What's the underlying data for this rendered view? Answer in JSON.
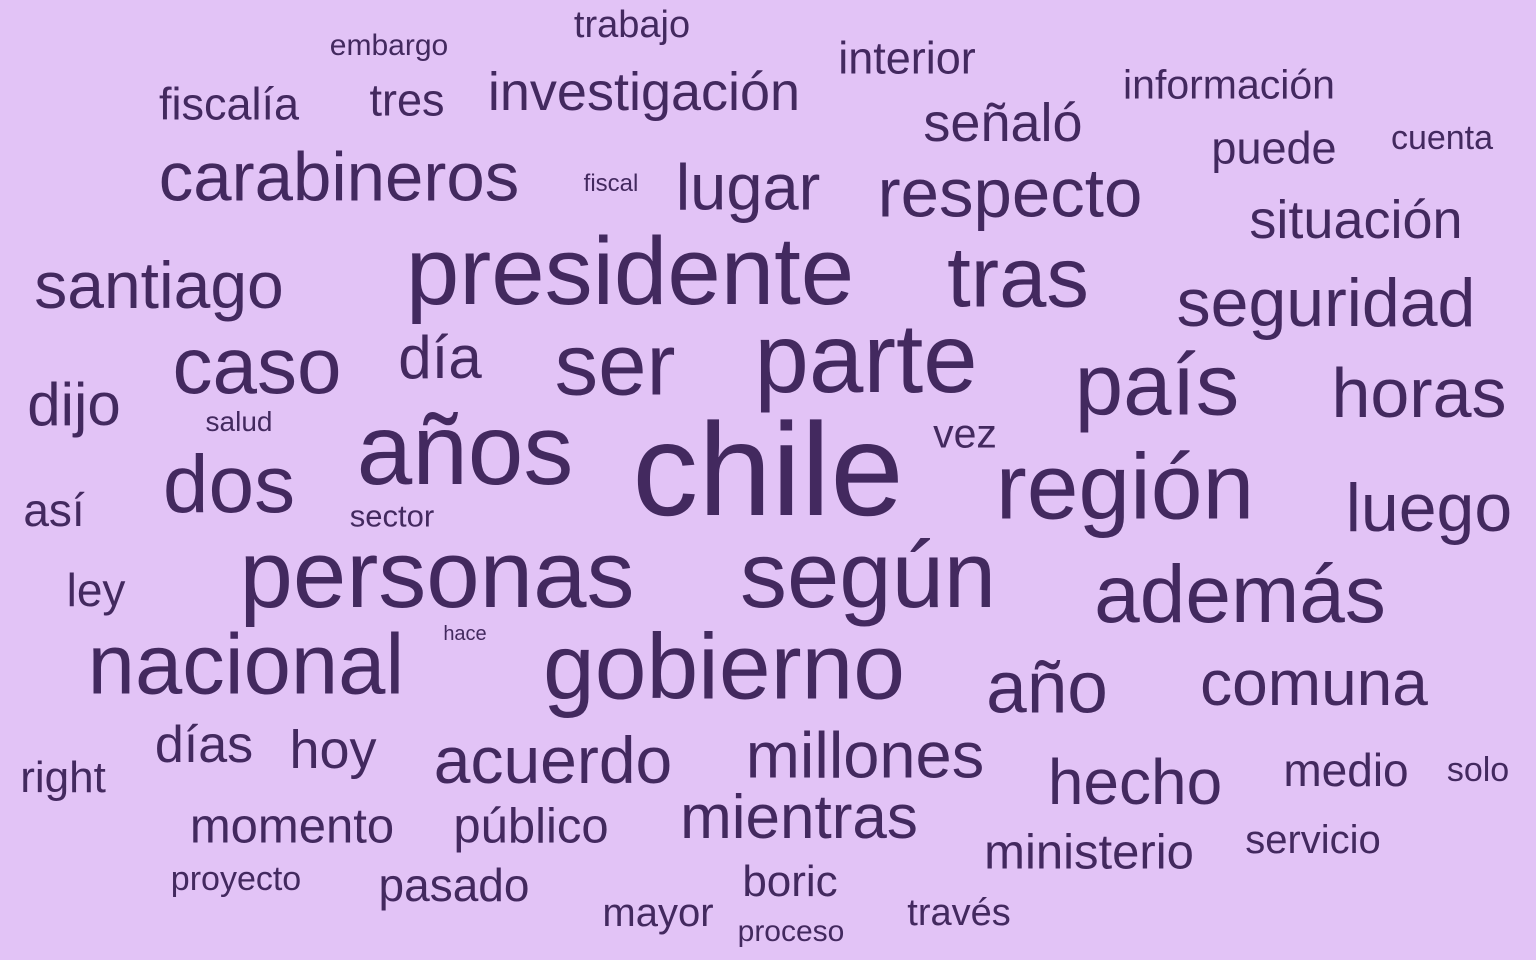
{
  "cloud": {
    "background": "#e2c3f6",
    "word_color": "#43295f",
    "words": [
      {
        "text": "chile",
        "weight": 100
      },
      {
        "text": "años",
        "weight": 76
      },
      {
        "text": "parte",
        "weight": 74
      },
      {
        "text": "presidente",
        "weight": 72
      },
      {
        "text": "personas",
        "weight": 72
      },
      {
        "text": "según",
        "weight": 71
      },
      {
        "text": "región",
        "weight": 70
      },
      {
        "text": "gobierno",
        "weight": 70
      },
      {
        "text": "ser",
        "weight": 66
      },
      {
        "text": "país",
        "weight": 66
      },
      {
        "text": "tras",
        "weight": 64
      },
      {
        "text": "nacional",
        "weight": 64
      },
      {
        "text": "dos",
        "weight": 62
      },
      {
        "text": "además",
        "weight": 62
      },
      {
        "text": "caso",
        "weight": 60
      },
      {
        "text": "año",
        "weight": 55
      },
      {
        "text": "horas",
        "weight": 53
      },
      {
        "text": "carabineros",
        "weight": 52
      },
      {
        "text": "respecto",
        "weight": 52
      },
      {
        "text": "seguridad",
        "weight": 51
      },
      {
        "text": "luego",
        "weight": 51
      },
      {
        "text": "santiago",
        "weight": 50
      },
      {
        "text": "acuerdo",
        "weight": 50
      },
      {
        "text": "lugar",
        "weight": 49
      },
      {
        "text": "millones",
        "weight": 49
      },
      {
        "text": "comuna",
        "weight": 48
      },
      {
        "text": "hecho",
        "weight": 48
      },
      {
        "text": "mientras",
        "weight": 47
      },
      {
        "text": "día",
        "weight": 45
      },
      {
        "text": "dijo",
        "weight": 45
      },
      {
        "text": "hoy",
        "weight": 41
      },
      {
        "text": "investigación",
        "weight": 41
      },
      {
        "text": "situación",
        "weight": 41
      },
      {
        "text": "señaló",
        "weight": 41
      },
      {
        "text": "días",
        "weight": 39
      },
      {
        "text": "momento",
        "weight": 37
      },
      {
        "text": "público",
        "weight": 37
      },
      {
        "text": "ministerio",
        "weight": 37
      },
      {
        "text": "pasado",
        "weight": 35
      },
      {
        "text": "medio",
        "weight": 35
      },
      {
        "text": "así",
        "weight": 35
      },
      {
        "text": "ley",
        "weight": 35
      },
      {
        "text": "fiscalía",
        "weight": 34
      },
      {
        "text": "tres",
        "weight": 34
      },
      {
        "text": "interior",
        "weight": 34
      },
      {
        "text": "puede",
        "weight": 34
      },
      {
        "text": "right",
        "weight": 33
      },
      {
        "text": "boric",
        "weight": 33
      },
      {
        "text": "información",
        "weight": 31
      },
      {
        "text": "vez",
        "weight": 31
      },
      {
        "text": "mayor",
        "weight": 30
      },
      {
        "text": "servicio",
        "weight": 30
      },
      {
        "text": "trabajo",
        "weight": 29
      },
      {
        "text": "través",
        "weight": 29
      },
      {
        "text": "cuenta",
        "weight": 26
      },
      {
        "text": "solo",
        "weight": 26
      },
      {
        "text": "proyecto",
        "weight": 26
      },
      {
        "text": "embargo",
        "weight": 23
      },
      {
        "text": "sector",
        "weight": 24
      },
      {
        "text": "proceso",
        "weight": 23
      },
      {
        "text": "salud",
        "weight": 21
      },
      {
        "text": "fiscal",
        "weight": 18
      },
      {
        "text": "hace",
        "weight": 15
      }
    ]
  }
}
